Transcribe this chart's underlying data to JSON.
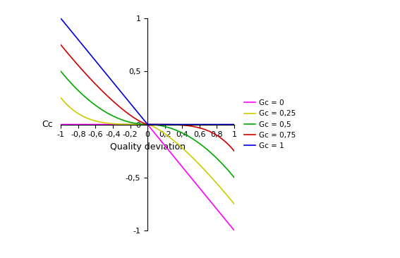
{
  "xlim": [
    -1,
    1
  ],
  "ylim": [
    -1,
    1
  ],
  "xlabel": "Quality deviation",
  "ylabel": "Cc",
  "xticks": [
    -1,
    -0.8,
    -0.6,
    -0.4,
    -0.2,
    0,
    0.2,
    0.4,
    0.6,
    0.8,
    1
  ],
  "yticks": [
    -1,
    -0.5,
    0,
    0.5,
    1
  ],
  "series": [
    {
      "label": "Gc = 0",
      "Gc": 0.0,
      "color": "#FF00FF"
    },
    {
      "label": "Gc = 0,25",
      "Gc": 0.25,
      "color": "#CCCC00"
    },
    {
      "label": "Gc = 0,5",
      "Gc": 0.5,
      "color": "#00AA00"
    },
    {
      "label": "Gc = 0,75",
      "Gc": 0.75,
      "color": "#CC0000"
    },
    {
      "label": "Gc = 1",
      "Gc": 1.0,
      "color": "#0000DD"
    }
  ],
  "alpha": 1,
  "beta": 1,
  "n_points": 2000,
  "background_color": "#FFFFFF",
  "linewidth": 1.2
}
